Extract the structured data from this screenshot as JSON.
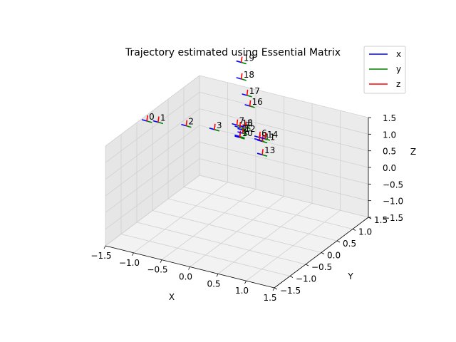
{
  "chart_data": {
    "type": "scatter3d",
    "title": "Trajectory estimated using Essential Matrix",
    "xlabel": "X",
    "ylabel": "Y",
    "zlabel": "Z",
    "xlim": [
      -1.5,
      1.5
    ],
    "ylim": [
      -1.5,
      1.5
    ],
    "zlim": [
      -1.5,
      1.5
    ],
    "x_ticks": [
      "−1.5",
      "−1.0",
      "−0.5",
      "0.0",
      "0.5",
      "1.0",
      "1.5"
    ],
    "y_ticks": [
      "−1.5",
      "−1.0",
      "−0.5",
      "0.0",
      "0.5",
      "1.0",
      "1.5"
    ],
    "z_ticks": [
      "−1.5",
      "−1.0",
      "−0.5",
      "0.0",
      "0.5",
      "1.0",
      "1.5"
    ],
    "grid": true,
    "legend": {
      "placement": "top-right",
      "entries": [
        {
          "name": "x",
          "color": "#0000ff"
        },
        {
          "name": "y",
          "color": "#008000"
        },
        {
          "name": "z",
          "color": "#ff0000"
        }
      ]
    },
    "points": [
      {
        "label": "0",
        "x": -1.6,
        "y": 0.0,
        "z": 1.15
      },
      {
        "label": "1",
        "x": -1.4,
        "y": 0.0,
        "z": 1.2
      },
      {
        "label": "2",
        "x": -0.9,
        "y": 0.0,
        "z": 1.3
      },
      {
        "label": "3",
        "x": -0.4,
        "y": 0.0,
        "z": 1.4
      },
      {
        "label": "4",
        "x": 0.05,
        "y": 0.0,
        "z": 1.38
      },
      {
        "label": "5",
        "x": 0.1,
        "y": 0.0,
        "z": 1.6
      },
      {
        "label": "6",
        "x": 0.4,
        "y": 0.0,
        "z": 1.5
      },
      {
        "label": "7",
        "x": 0.0,
        "y": 0.0,
        "z": 1.7
      },
      {
        "label": "8",
        "x": 0.15,
        "y": 0.0,
        "z": 1.7
      },
      {
        "label": "9",
        "x": 0.4,
        "y": 0.0,
        "z": 1.42
      },
      {
        "label": "10",
        "x": 0.05,
        "y": 0.0,
        "z": 1.35
      },
      {
        "label": "11",
        "x": 0.45,
        "y": 0.0,
        "z": 1.4
      },
      {
        "label": "12",
        "x": 0.1,
        "y": 0.0,
        "z": 1.5
      },
      {
        "label": "13",
        "x": 0.45,
        "y": 0.0,
        "z": 1.0
      },
      {
        "label": "14",
        "x": 0.5,
        "y": 0.0,
        "z": 1.5
      },
      {
        "label": "15",
        "x": 0.05,
        "y": 0.0,
        "z": 1.65
      },
      {
        "label": "16",
        "x": -0.05,
        "y": 0.5,
        "z": 1.9
      },
      {
        "label": "17",
        "x": -0.1,
        "y": 0.5,
        "z": 2.2
      },
      {
        "label": "18",
        "x": -0.2,
        "y": 0.5,
        "z": 2.65
      },
      {
        "label": "19",
        "x": -0.2,
        "y": 0.5,
        "z": 3.15
      }
    ]
  }
}
